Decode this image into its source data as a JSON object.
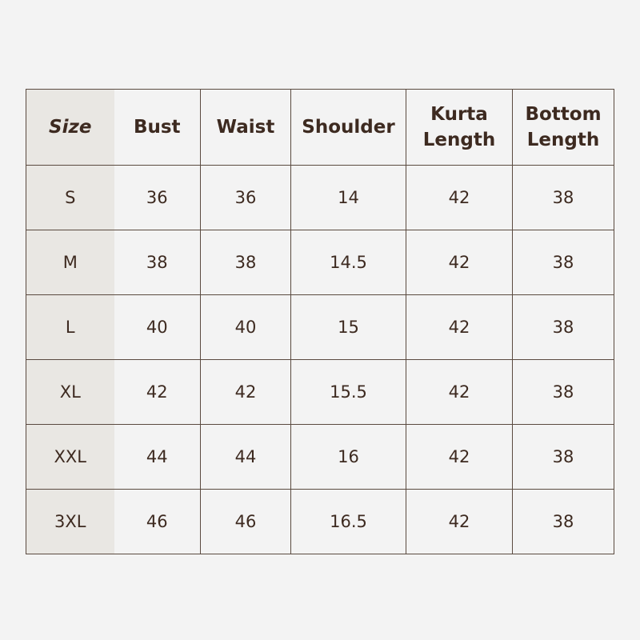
{
  "table": {
    "headers": [
      "Size",
      "Bust",
      "Waist",
      "Shoulder",
      "Kurta Length",
      "Bottom Length"
    ],
    "rows": [
      [
        "S",
        "36",
        "36",
        "14",
        "42",
        "38"
      ],
      [
        "M",
        "38",
        "38",
        "14.5",
        "42",
        "38"
      ],
      [
        "L",
        "40",
        "40",
        "15",
        "42",
        "38"
      ],
      [
        "XL",
        "42",
        "42",
        "15.5",
        "42",
        "38"
      ],
      [
        "XXL",
        "44",
        "44",
        "16",
        "42",
        "38"
      ],
      [
        "3XL",
        "46",
        "46",
        "16.5",
        "42",
        "38"
      ]
    ]
  },
  "colors": {
    "background": "#f3f3f3",
    "size_column": "#e9e7e3",
    "border": "#5a4a40",
    "text": "#3d2a20"
  }
}
